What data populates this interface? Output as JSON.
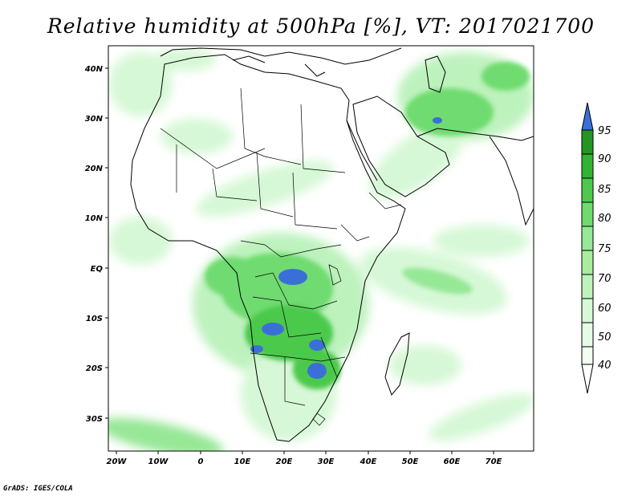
{
  "title": "Relative humidity at 500hPa [%], VT: 2017021700",
  "credit": "GrADS: IGES/COLA",
  "x_ticks": [
    "20W",
    "10W",
    "0",
    "10E",
    "20E",
    "30E",
    "40E",
    "50E",
    "60E",
    "70E"
  ],
  "y_ticks": [
    "40N",
    "30N",
    "20N",
    "10N",
    "EQ",
    "10S",
    "20S",
    "30S"
  ],
  "colorbar": {
    "levels": [
      "40",
      "50",
      "60",
      "70",
      "75",
      "80",
      "85",
      "90",
      "95"
    ],
    "colors": [
      "#f0fdf0",
      "#d6f8d6",
      "#bdf2bd",
      "#96e796",
      "#6fdb6f",
      "#4cc94c",
      "#33b333",
      "#239523",
      "#3b6fd8"
    ]
  },
  "chart_data": {
    "type": "heatmap",
    "title": "Relative humidity at 500hPa [%], VT: 2017021700",
    "variable": "Relative humidity at 500hPa",
    "unit": "%",
    "valid_time": "2017021700",
    "lon_range": [
      "24W",
      "80E"
    ],
    "lat_range": [
      "37S",
      "45N"
    ],
    "levels": [
      40,
      50,
      60,
      70,
      75,
      80,
      85,
      90,
      95
    ],
    "regions_above_90": [
      "Congo Basin",
      "Zambia/Angola border",
      "Zimbabwe"
    ]
  }
}
